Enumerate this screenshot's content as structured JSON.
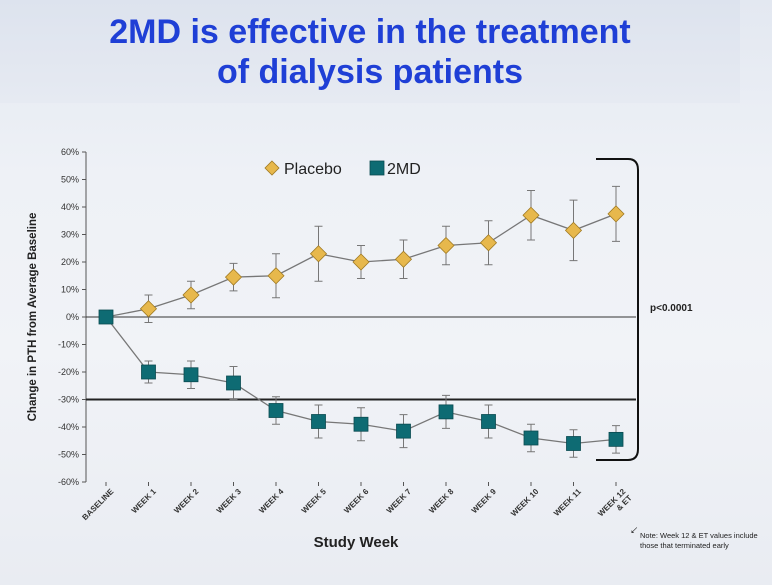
{
  "slide": {
    "title_line1": "2MD is effective in the treatment",
    "title_line2": "of dialysis patients",
    "note": "Note:  Week 12 & ET values include those that terminated early",
    "colors": {
      "title": "#1f3fd6",
      "placebo": "#e7b84c",
      "treatment": "#0e6b73",
      "text": "#222222"
    }
  },
  "chart_data": {
    "type": "line",
    "categories": [
      "BASELINE",
      "WEEK 1",
      "WEEK 2",
      "WEEK 3",
      "WEEK 4",
      "WEEK 5",
      "WEEK 6",
      "WEEK 7",
      "WEEK 8",
      "WEEK 9",
      "WEEK 10",
      "WEEK 11",
      "WEEK 12 & ET"
    ],
    "series": [
      {
        "name": "Placebo",
        "marker": "diamond",
        "values": [
          0,
          3,
          8,
          14.5,
          15,
          23,
          20,
          21,
          26,
          27,
          37,
          31.5,
          37.5
        ],
        "errors": [
          0,
          5,
          5,
          5,
          8,
          10,
          6,
          7,
          7,
          8,
          9,
          11,
          10
        ]
      },
      {
        "name": "2MD",
        "marker": "square",
        "values": [
          0,
          -20,
          -21,
          -24,
          -34,
          -38,
          -39,
          -41.5,
          -34.5,
          -38,
          -44,
          -46,
          -44.5
        ],
        "errors": [
          0,
          4,
          5,
          6,
          5,
          6,
          6,
          6,
          6,
          6,
          5,
          5,
          5
        ]
      }
    ],
    "title": "",
    "xlabel": "Study Week",
    "ylabel": "Change in PTH from Average Baseline",
    "ylim": [
      -60,
      60
    ],
    "yticks": [
      60,
      50,
      40,
      30,
      20,
      10,
      0,
      -10,
      -20,
      -30,
      -40,
      -50,
      -60
    ],
    "ytick_labels": [
      "60%",
      "50%",
      "40%",
      "30%",
      "20%",
      "10%",
      "0%",
      "-10%",
      "-20%",
      "-30%",
      "-40%",
      "-50%",
      "-60%"
    ],
    "reference_lines": [
      0,
      -30
    ],
    "legend": "top",
    "annotation": "p<0.0001"
  }
}
